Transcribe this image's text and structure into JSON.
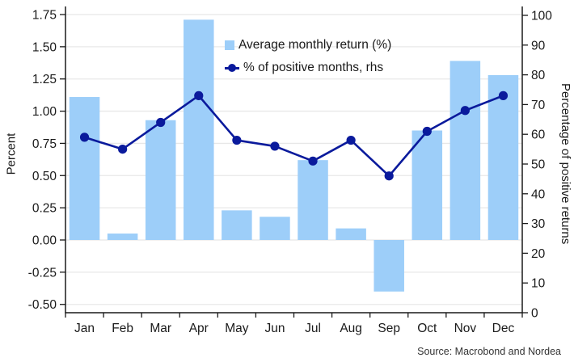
{
  "chart_data": {
    "type": "bar",
    "combo": "bar+line dual axis",
    "categories": [
      "Jan",
      "Feb",
      "Mar",
      "Apr",
      "May",
      "Jun",
      "Jul",
      "Aug",
      "Sep",
      "Oct",
      "Nov",
      "Dec"
    ],
    "series": [
      {
        "name": "Average monthly return (%)",
        "type": "bar",
        "axis": "left",
        "color": "#9DCEF9",
        "values": [
          1.11,
          0.05,
          0.93,
          1.71,
          0.23,
          0.18,
          0.62,
          0.09,
          -0.4,
          0.85,
          1.39,
          1.28
        ]
      },
      {
        "name": "% of positive months, rhs",
        "type": "line",
        "axis": "right",
        "color": "#0A1A9C",
        "values": [
          59,
          55,
          64,
          73,
          58,
          56,
          51,
          58,
          46,
          61,
          68,
          73
        ]
      }
    ],
    "left_axis": {
      "label": "Percent",
      "min": -0.5,
      "max": 1.75,
      "tick_values": [
        1.75,
        1.5,
        1.25,
        1.0,
        0.75,
        0.5,
        0.25,
        0.0,
        -0.25,
        -0.5
      ],
      "tick_labels": [
        "1.75",
        "1.50",
        "1.25",
        "1.00",
        "0.75",
        "0.50",
        "0.25",
        "0.00",
        "-0.25",
        "-0.50"
      ]
    },
    "right_axis": {
      "label": "Percentage of positive returns",
      "min": 0,
      "max": 100,
      "tick_values": [
        100,
        90,
        80,
        70,
        60,
        50,
        40,
        30,
        20,
        10,
        0
      ],
      "tick_labels": [
        "100",
        "90",
        "80",
        "70",
        "60",
        "50",
        "40",
        "30",
        "20",
        "10",
        "0"
      ]
    },
    "grid": "horizontal light-gray lines at every left-axis tick",
    "legend_position": "inside top-center",
    "source": "Source: Macrobond and Nordea",
    "colors": {
      "bar": "#9DCEF9",
      "line": "#0A1A9C",
      "gridline": "#E8E8E8",
      "axis": "#1a1a1a",
      "background": "#ffffff"
    }
  }
}
